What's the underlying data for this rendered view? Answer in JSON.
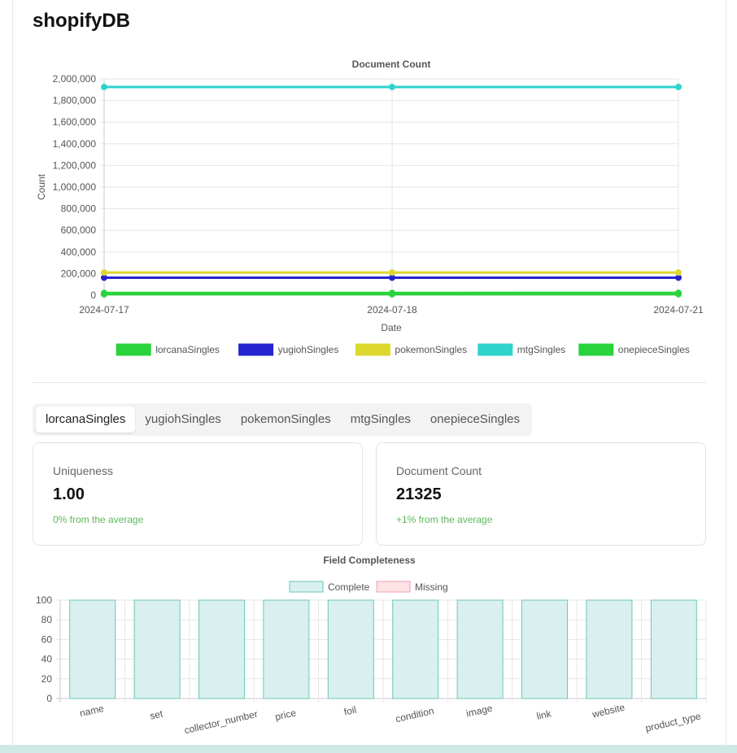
{
  "page": {
    "title": "shopifyDB"
  },
  "tabs": [
    "lorcanaSingles",
    "yugiohSingles",
    "pokemonSingles",
    "mtgSingles",
    "onepieceSingles"
  ],
  "active_tab": 0,
  "stats": [
    {
      "label": "Uniqueness",
      "value": "1.00",
      "change": "0% from the average"
    },
    {
      "label": "Document Count",
      "value": "21325",
      "change": "+1% from the average"
    }
  ],
  "colors": {
    "accent_green": "#5cb85c",
    "complete_fill": "#d9f0ee",
    "complete_stroke": "#6cc6bc",
    "missing_fill": "#fde2e6",
    "missing_stroke": "#e8a3b1"
  },
  "chart_data": [
    {
      "type": "line",
      "title": "Document Count",
      "xlabel": "Date",
      "ylabel": "Count",
      "x": [
        "2024-07-17",
        "2024-07-18",
        "2024-07-21"
      ],
      "ylim": [
        0,
        2000000
      ],
      "yticks": [
        "0",
        "200,000",
        "400,000",
        "600,000",
        "800,000",
        "1,000,000",
        "1,200,000",
        "1,400,000",
        "1,600,000",
        "1,800,000",
        "2,000,000"
      ],
      "grid": true,
      "legend": "bottom",
      "series": [
        {
          "name": "lorcanaSingles",
          "color": "#28d33c",
          "values": [
            21000,
            21100,
            21325
          ]
        },
        {
          "name": "yugiohSingles",
          "color": "#2424d0",
          "values": [
            162000,
            162000,
            162000
          ]
        },
        {
          "name": "pokemonSingles",
          "color": "#dcd82e",
          "values": [
            210000,
            210000,
            210000
          ]
        },
        {
          "name": "mtgSingles",
          "color": "#2ed3cc",
          "values": [
            1925000,
            1925000,
            1925000
          ]
        },
        {
          "name": "onepieceSingles",
          "color": "#28d33c",
          "values": [
            9000,
            9000,
            9000
          ]
        }
      ]
    },
    {
      "type": "bar",
      "title": "Field Completeness",
      "categories": [
        "name",
        "set",
        "collector_number",
        "price",
        "foil",
        "condition",
        "image",
        "link",
        "website",
        "product_type"
      ],
      "ylim": [
        0,
        100
      ],
      "yticks": [
        "0",
        "20",
        "40",
        "60",
        "80",
        "100"
      ],
      "grid": true,
      "legend": "top",
      "series": [
        {
          "name": "Complete",
          "values": [
            100,
            100,
            100,
            100,
            100,
            100,
            100,
            100,
            100,
            100
          ]
        },
        {
          "name": "Missing",
          "values": [
            0,
            0,
            0,
            0,
            0,
            0,
            0,
            0,
            0,
            0
          ]
        }
      ]
    }
  ]
}
